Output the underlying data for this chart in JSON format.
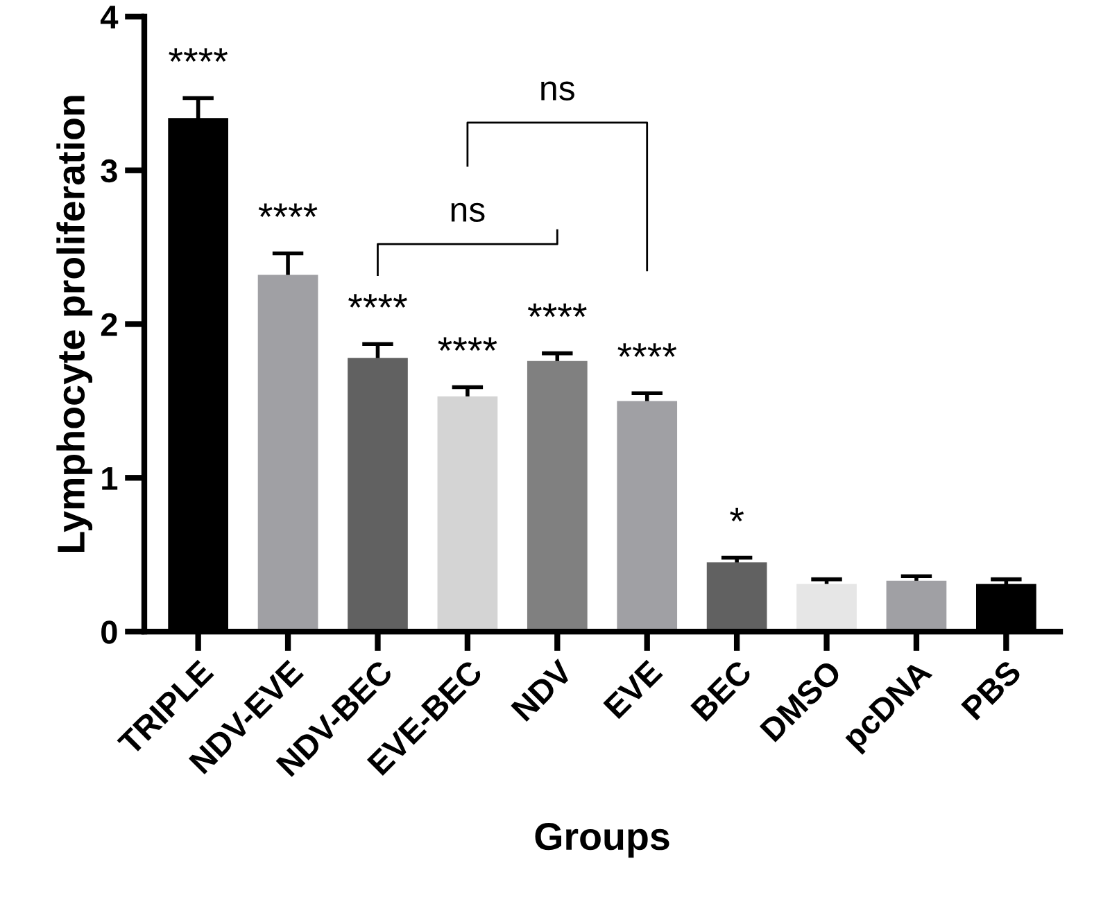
{
  "chart_data": {
    "type": "bar",
    "xlabel": "Groups",
    "ylabel": "Lymphocyte proliferation",
    "categories": [
      "TRIPLE",
      "NDV-EVE",
      "NDV-BEC",
      "EVE-BEC",
      "NDV",
      "EVE",
      "BEC",
      "DMSO",
      "pcDNA",
      "PBS"
    ],
    "values": [
      3.34,
      2.32,
      1.78,
      1.53,
      1.76,
      1.5,
      0.45,
      0.31,
      0.33,
      0.31
    ],
    "errors": [
      0.13,
      0.14,
      0.09,
      0.06,
      0.05,
      0.05,
      0.03,
      0.03,
      0.03,
      0.03
    ],
    "value_labels": [
      "****",
      "****",
      "****",
      "****",
      "****",
      "****",
      "*",
      null,
      null,
      null
    ],
    "colors": [
      "#000000",
      "#a0a0a4",
      "#616161",
      "#d4d4d4",
      "#808080",
      "#a0a0a4",
      "#616161",
      "#e6e6e6",
      "#a0a0a4",
      "#000000"
    ],
    "ylim": [
      0,
      4
    ],
    "yticks": [
      0,
      1,
      2,
      3,
      4
    ],
    "annotations": [
      "ns",
      "ns"
    ]
  }
}
